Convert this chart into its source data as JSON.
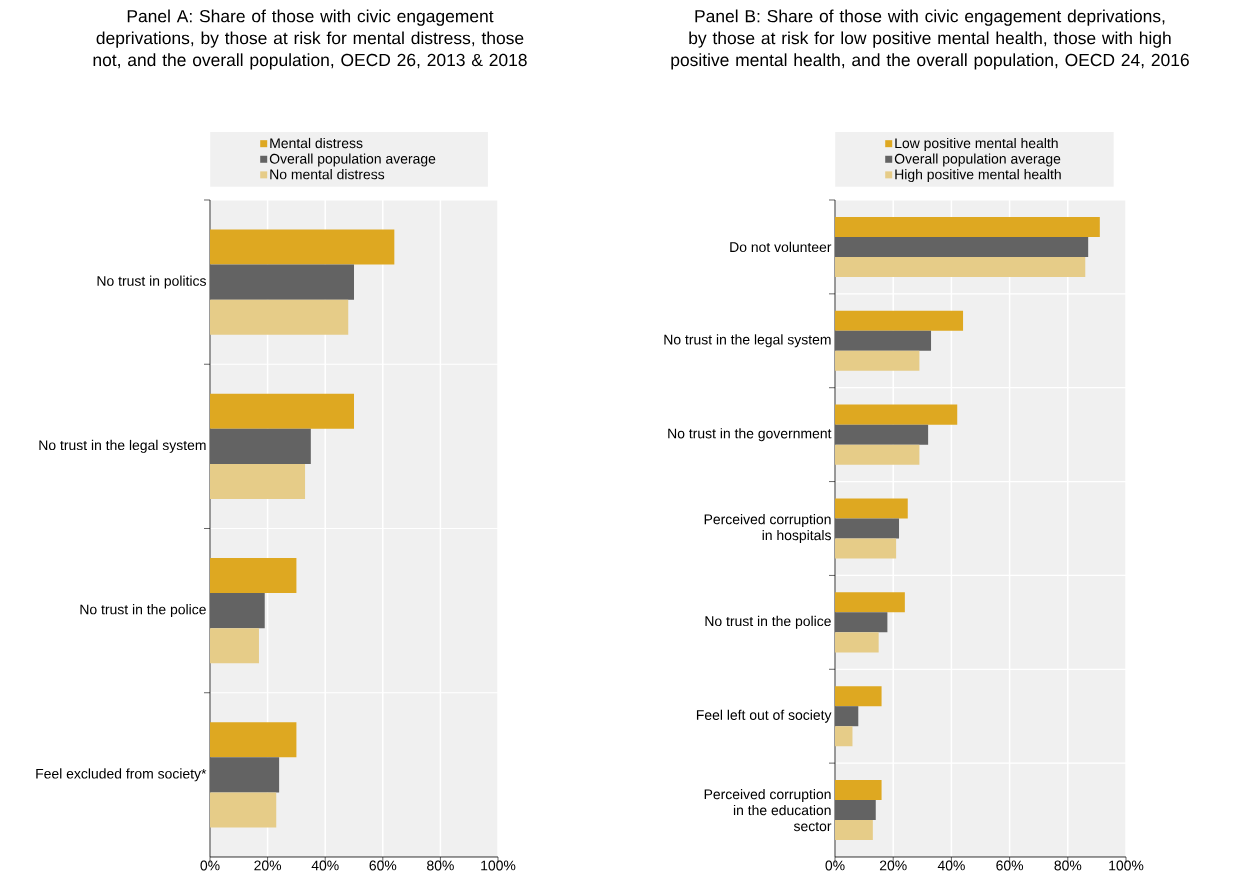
{
  "chart_data": [
    {
      "type": "bar",
      "orientation": "horizontal",
      "title": "Panel A: Share of those with civic engagement deprivations, by those at risk for mental distress, those not, and the overall population, OECD 26, 2013 & 2018",
      "categories": [
        "No trust in politics",
        "No trust in the legal system",
        "No trust in the police",
        "Feel excluded from society*"
      ],
      "series": [
        {
          "name": "Mental distress",
          "color": "#dea821",
          "values": [
            64,
            50,
            30,
            30
          ]
        },
        {
          "name": "Overall population average",
          "color": "#636363",
          "values": [
            50,
            35,
            19,
            24
          ]
        },
        {
          "name": "No mental distress",
          "color": "#e6cc88",
          "values": [
            48,
            33,
            17,
            23
          ]
        }
      ],
      "xlim": [
        0,
        100
      ],
      "xticks": [
        {
          "value": 0,
          "label": "0%"
        },
        {
          "value": 20,
          "label": "20%"
        },
        {
          "value": 40,
          "label": "40%"
        },
        {
          "value": 60,
          "label": "60%"
        },
        {
          "value": 80,
          "label": "80%"
        },
        {
          "value": 100,
          "label": "100%"
        }
      ],
      "grid": "x",
      "legend": "top"
    },
    {
      "type": "bar",
      "orientation": "horizontal",
      "title": "Panel B: Share of those with civic engagement deprivations, by those at risk for low positive mental health, those with high positive mental health, and the overall population, OECD 24, 2016",
      "categories": [
        "Do not volunteer",
        "No trust in the legal system",
        "No trust in the government",
        "Perceived corruption in hospitals",
        "No trust in the police",
        "Feel left out of society",
        "Perceived corruption in the education sector"
      ],
      "series": [
        {
          "name": "Low positive mental health",
          "color": "#dea821",
          "values": [
            91,
            44,
            42,
            25,
            24,
            16,
            16
          ]
        },
        {
          "name": "Overall population average",
          "color": "#636363",
          "values": [
            87,
            33,
            32,
            22,
            18,
            8,
            14
          ]
        },
        {
          "name": "High positive mental health",
          "color": "#e6cc88",
          "values": [
            86,
            29,
            29,
            21,
            15,
            6,
            13
          ]
        }
      ],
      "xlim": [
        0,
        100
      ],
      "xticks": [
        {
          "value": 0,
          "label": "0%"
        },
        {
          "value": 20,
          "label": "20%"
        },
        {
          "value": 40,
          "label": "40%"
        },
        {
          "value": 60,
          "label": "60%"
        },
        {
          "value": 80,
          "label": "80%"
        },
        {
          "value": 100,
          "label": "100%"
        }
      ],
      "grid": "x",
      "legend": "top"
    }
  ]
}
